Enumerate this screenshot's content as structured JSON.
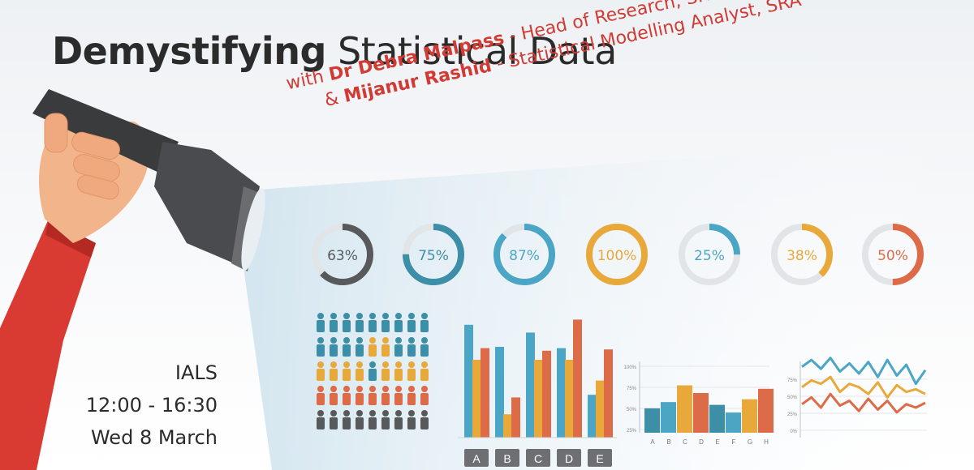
{
  "title": {
    "bold": "Demystifying",
    "rest": " Statistical Data"
  },
  "speakers": [
    {
      "prefix": "with ",
      "name": "Dr Debra Malpass",
      "role": " - Head of Research, SRA"
    },
    {
      "prefix": "& ",
      "name": "Mijanur Rashid",
      "role": " - Statistical Modelling Analyst, SRA"
    }
  ],
  "event": {
    "venue": "IALS",
    "time": "12:00 - 16:30",
    "date": "Wed 8 March"
  },
  "colors": {
    "gray": "#58595b",
    "teal": "#3d8fa8",
    "blue": "#4ba6c6",
    "orange": "#e8a93a",
    "red": "#de6b47",
    "title": "#2b2b2b",
    "accent": "#d23b34"
  },
  "chart_data": [
    {
      "type": "donut",
      "values": [
        63,
        75,
        87,
        100,
        25,
        38,
        50
      ],
      "labels": [
        "63%",
        "75%",
        "87%",
        "100%",
        "25%",
        "38%",
        "50%"
      ],
      "colors": [
        "gray",
        "teal",
        "blue",
        "orange",
        "blue",
        "orange",
        "red"
      ]
    },
    {
      "type": "pictogram",
      "rows": [
        [
          "teal",
          "teal",
          "teal",
          "teal",
          "teal",
          "teal",
          "teal",
          "teal",
          "teal"
        ],
        [
          "teal",
          "teal",
          "teal",
          "teal",
          "orange",
          "orange",
          "teal",
          "teal",
          "teal"
        ],
        [
          "orange",
          "orange",
          "orange",
          "orange",
          "teal",
          "orange",
          "orange",
          "orange",
          "orange"
        ],
        [
          "red",
          "red",
          "red",
          "red",
          "red",
          "red",
          "red",
          "red",
          "red"
        ],
        [
          "gray",
          "gray",
          "gray",
          "gray",
          "gray",
          "gray",
          "gray",
          "gray",
          "gray"
        ]
      ]
    },
    {
      "type": "bar",
      "categories": [
        "A",
        "B",
        "C",
        "D",
        "E"
      ],
      "series": [
        {
          "color": "blue",
          "values": [
            87,
            70,
            81,
            69,
            33
          ]
        },
        {
          "color": "orange",
          "values": [
            60,
            18,
            60,
            60,
            44
          ]
        },
        {
          "color": "red",
          "values": [
            69,
            31,
            67,
            91,
            68
          ]
        }
      ],
      "ylim": [
        0,
        100
      ]
    },
    {
      "type": "bar",
      "categories": [
        "A",
        "B",
        "C",
        "D",
        "E",
        "F",
        "G",
        "H"
      ],
      "values": [
        35,
        44,
        68,
        57,
        40,
        29,
        48,
        63
      ],
      "colors": [
        "teal",
        "blue",
        "orange",
        "red",
        "teal",
        "blue",
        "orange",
        "red"
      ],
      "ytick_labels": [
        "100%",
        "75%",
        "50%",
        "25%"
      ],
      "ylim": [
        0,
        100
      ]
    },
    {
      "type": "line",
      "x": [
        1,
        2,
        3,
        4,
        5,
        6,
        7,
        8,
        9,
        10,
        11,
        12,
        13,
        14
      ],
      "series": [
        {
          "color": "blue",
          "values": [
            85,
            95,
            82,
            98,
            78,
            90,
            75,
            92,
            70,
            95,
            72,
            88,
            60,
            80
          ]
        },
        {
          "color": "orange",
          "values": [
            55,
            65,
            60,
            70,
            48,
            60,
            55,
            45,
            62,
            40,
            58,
            48,
            52,
            45
          ]
        },
        {
          "color": "red",
          "values": [
            30,
            40,
            25,
            45,
            28,
            35,
            20,
            38,
            22,
            35,
            18,
            30,
            25,
            32
          ]
        }
      ],
      "ytick_labels": [
        "75%",
        "50%",
        "25%",
        "0%"
      ],
      "ylim": [
        0,
        100
      ]
    }
  ]
}
